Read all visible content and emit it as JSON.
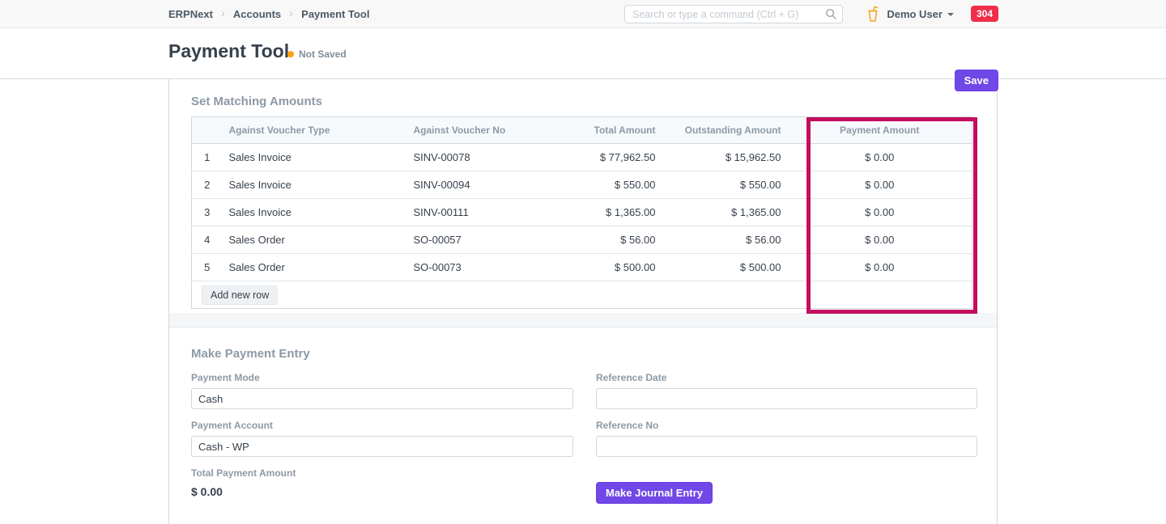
{
  "colors": {
    "primary": "#7048e8",
    "badge_red": "#ef2e49",
    "highlight": "#c40e5e",
    "status_orange": "#ffa00a"
  },
  "navbar": {
    "breadcrumb": [
      {
        "label": "ERPNext"
      },
      {
        "label": "Accounts"
      },
      {
        "label": "Payment Tool"
      }
    ],
    "separator": "›",
    "search_placeholder": "Search or type a command (Ctrl + G)",
    "user_name": "Demo User",
    "badge_count": "304"
  },
  "header": {
    "title": "Payment Tool",
    "status": "Not Saved",
    "save_label": "Save"
  },
  "matching": {
    "heading": "Set Matching Amounts",
    "table": {
      "columns": [
        "Against Voucher Type",
        "Against Voucher No",
        "Total Amount",
        "Outstanding Amount",
        "Payment Amount"
      ],
      "rows": [
        {
          "idx": "1",
          "voucher_type": "Sales Invoice",
          "voucher_no": "SINV-00078",
          "total": "$ 77,962.50",
          "outstanding": "$ 15,962.50",
          "payment": "$ 0.00"
        },
        {
          "idx": "2",
          "voucher_type": "Sales Invoice",
          "voucher_no": "SINV-00094",
          "total": "$ 550.00",
          "outstanding": "$ 550.00",
          "payment": "$ 0.00"
        },
        {
          "idx": "3",
          "voucher_type": "Sales Invoice",
          "voucher_no": "SINV-00111",
          "total": "$ 1,365.00",
          "outstanding": "$ 1,365.00",
          "payment": "$ 0.00"
        },
        {
          "idx": "4",
          "voucher_type": "Sales Order",
          "voucher_no": "SO-00057",
          "total": "$ 56.00",
          "outstanding": "$ 56.00",
          "payment": "$ 0.00"
        },
        {
          "idx": "5",
          "voucher_type": "Sales Order",
          "voucher_no": "SO-00073",
          "total": "$ 500.00",
          "outstanding": "$ 500.00",
          "payment": "$ 0.00"
        }
      ],
      "add_row_label": "Add new row"
    }
  },
  "payment_entry": {
    "heading": "Make Payment Entry",
    "fields": {
      "payment_mode": {
        "label": "Payment Mode",
        "value": "Cash"
      },
      "reference_date": {
        "label": "Reference Date",
        "value": ""
      },
      "payment_account": {
        "label": "Payment Account",
        "value": "Cash - WP"
      },
      "reference_no": {
        "label": "Reference No",
        "value": ""
      },
      "total_payment_amount": {
        "label": "Total Payment Amount",
        "value": "$ 0.00"
      }
    },
    "make_journal_entry_label": "Make Journal Entry"
  }
}
